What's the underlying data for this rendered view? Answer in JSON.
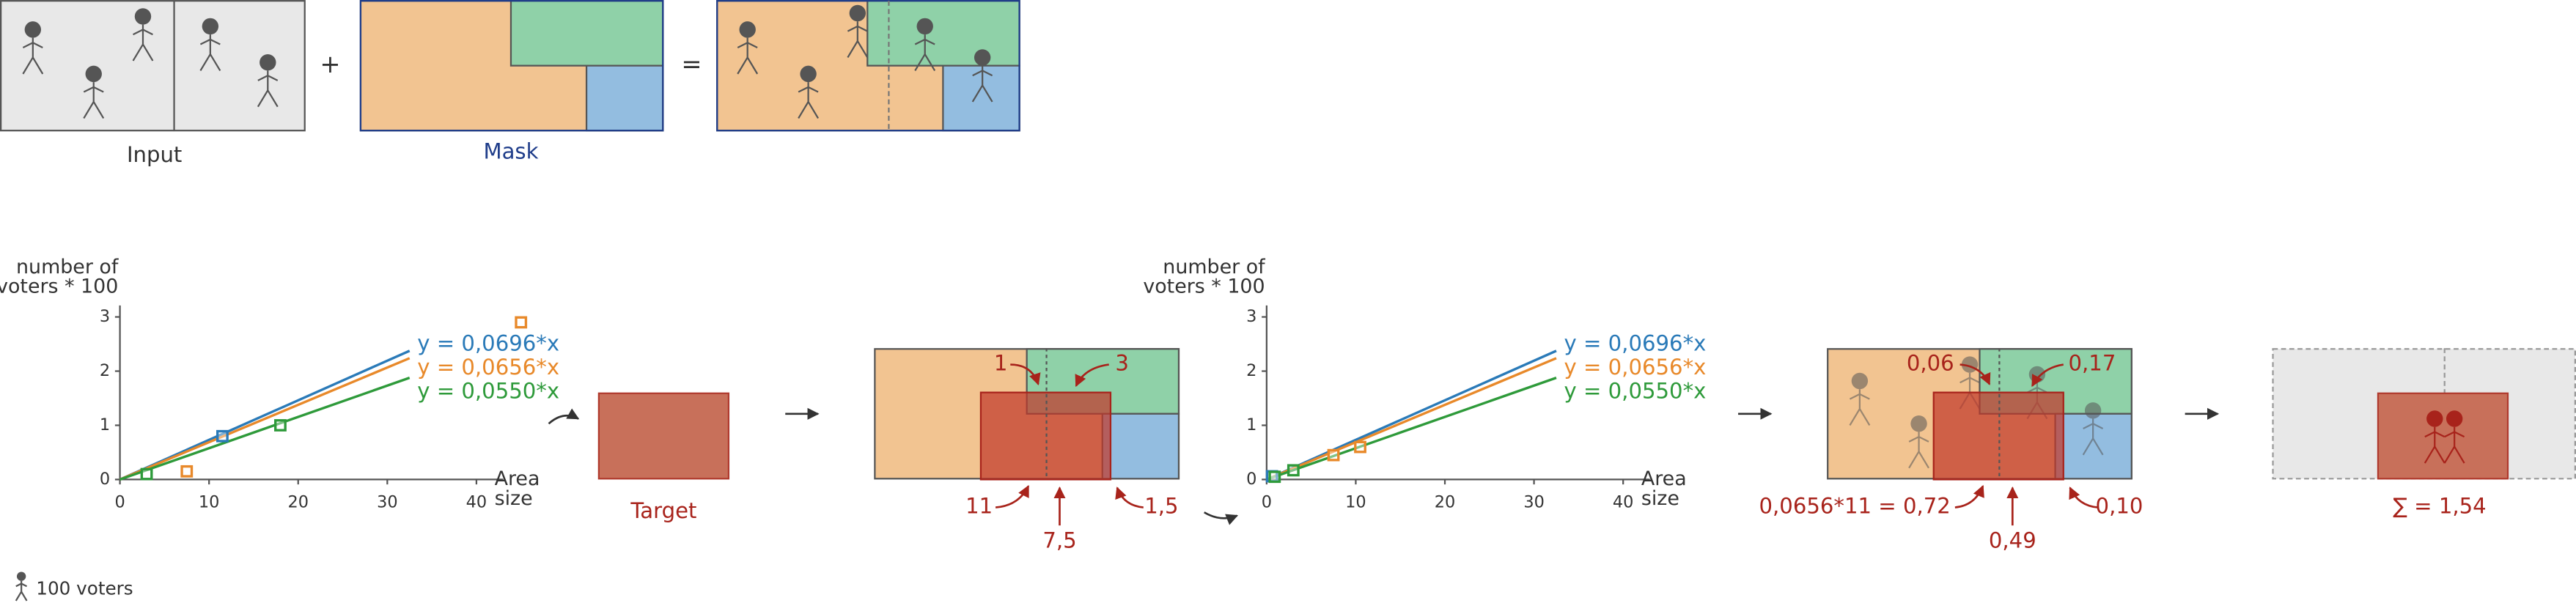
{
  "input": {
    "label": "Input"
  },
  "plus": "+",
  "equals": "=",
  "mask": {
    "label": "Mask"
  },
  "charts": [
    {
      "y_axis_label": [
        "number of",
        "voters * 100"
      ],
      "x_axis_label": [
        "Area",
        "size"
      ],
      "yticks": [
        "0",
        "1",
        "2",
        "3"
      ],
      "xticks": [
        "0",
        "10",
        "20",
        "30",
        "40"
      ],
      "equations": [
        "y = 0,0696*x",
        "y = 0,0656*x",
        "y = 0,0550*x"
      ]
    },
    {
      "y_axis_label": [
        "number of",
        "voters * 100"
      ],
      "x_axis_label": [
        "Area",
        "size"
      ],
      "yticks": [
        "0",
        "1",
        "2",
        "3"
      ],
      "xticks": [
        "0",
        "10",
        "20",
        "30",
        "40"
      ],
      "equations": [
        "y = 0,0696*x",
        "y = 0,0656*x",
        "y = 0,0550*x"
      ]
    }
  ],
  "target": {
    "label": "Target"
  },
  "step1": {
    "labels": [
      "1",
      "3",
      "11",
      "7,5",
      "1,5"
    ]
  },
  "step2": {
    "labels": [
      "0,06",
      "0,17",
      "0,0656*11 = 0,72",
      "0,49",
      "0,10"
    ]
  },
  "result": {
    "label": "∑ = 1,54"
  },
  "legend": {
    "label": "100 voters"
  }
}
